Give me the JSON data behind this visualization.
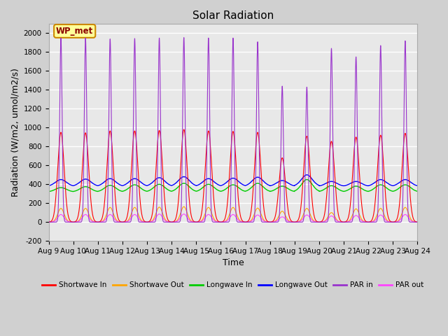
{
  "title": "Solar Radiation",
  "xlabel": "Time",
  "ylabel": "Radiation (W/m2, umol/m2/s)",
  "ylim": [
    -200,
    2100
  ],
  "yticks": [
    -200,
    0,
    200,
    400,
    600,
    800,
    1000,
    1200,
    1400,
    1600,
    1800,
    2000
  ],
  "xtick_labels": [
    "Aug 9",
    "Aug 10",
    "Aug 11",
    "Aug 12",
    "Aug 13",
    "Aug 14",
    "Aug 15",
    "Aug 16",
    "Aug 17",
    "Aug 18",
    "Aug 19",
    "Aug 20",
    "Aug 21",
    "Aug 22",
    "Aug 23",
    "Aug 24"
  ],
  "n_days": 15,
  "colors": {
    "shortwave_in": "#ff0000",
    "shortwave_out": "#ffa500",
    "longwave_in": "#00cc00",
    "longwave_out": "#0000ff",
    "par_in": "#9933cc",
    "par_out": "#ff44ff"
  },
  "plot_bg_color": "#e8e8e8",
  "fig_bg_color": "#d0d0d0",
  "grid_color": "#ffffff",
  "annotation_text": "WP_met",
  "annotation_bg": "#ffff99",
  "annotation_border": "#cc8800",
  "legend_entries": [
    "Shortwave In",
    "Shortwave Out",
    "Longwave In",
    "Longwave Out",
    "PAR in",
    "PAR out"
  ],
  "peak_heights_sw_in": [
    950,
    945,
    965,
    965,
    970,
    980,
    965,
    960,
    950,
    680,
    910,
    855,
    900,
    920,
    940
  ],
  "peak_heights_sw_out": [
    145,
    145,
    155,
    155,
    158,
    163,
    155,
    155,
    148,
    115,
    145,
    100,
    140,
    145,
    155
  ],
  "peak_heights_lw_in": [
    365,
    375,
    390,
    395,
    400,
    410,
    400,
    395,
    410,
    380,
    450,
    385,
    380,
    395,
    395
  ],
  "peak_heights_lw_out": [
    450,
    455,
    460,
    460,
    470,
    480,
    460,
    465,
    475,
    440,
    500,
    430,
    430,
    450,
    450
  ],
  "peak_heights_par_in": [
    1950,
    1950,
    1940,
    1945,
    1950,
    1955,
    1950,
    1950,
    1910,
    1440,
    1430,
    1840,
    1750,
    1870,
    1920
  ],
  "peak_heights_par_out": [
    80,
    80,
    80,
    80,
    85,
    85,
    80,
    80,
    75,
    55,
    75,
    65,
    70,
    75,
    80
  ],
  "night_lw_in": 320,
  "night_lw_out": 380,
  "title_fontsize": 11,
  "axis_fontsize": 9,
  "tick_fontsize": 7.5
}
